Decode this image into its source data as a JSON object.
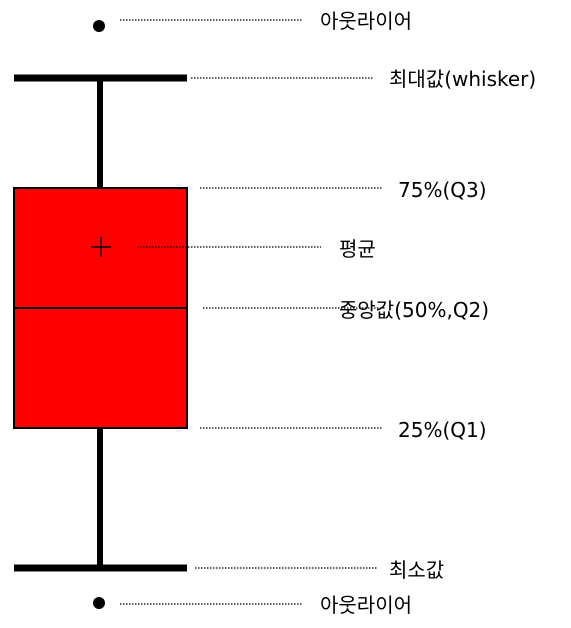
{
  "labels": {
    "outlier_top": "아웃라이어",
    "max_whisker": "최대값(whisker)",
    "q3": "75%(Q3)",
    "mean": "평균",
    "median": "중앙값(50%,Q2)",
    "q1": "25%(Q1)",
    "min": "최소값",
    "outlier_bottom": "아웃라이어"
  },
  "colors": {
    "box_fill": "#ff0000",
    "stroke": "#000000",
    "background": "#ffffff"
  },
  "markers": {
    "outlier": "filled-circle",
    "mean": "plus-sign"
  }
}
